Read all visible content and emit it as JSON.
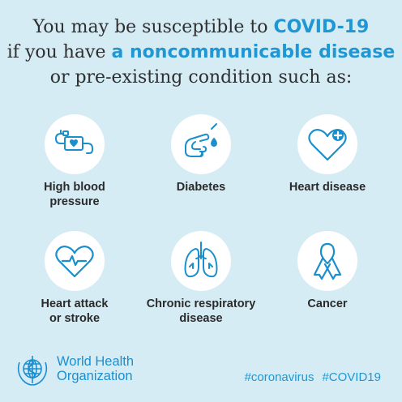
{
  "headline": {
    "line1_prefix": "You may be susceptible to ",
    "line1_highlight": "COVID-19",
    "line2_prefix": "if you have ",
    "line2_highlight": "a noncommunicable disease",
    "line3": "or pre-existing condition such as:"
  },
  "conditions": [
    {
      "line1": "High blood",
      "line2": "pressure",
      "icon": "blood-pressure-monitor-icon"
    },
    {
      "line1": "Diabetes",
      "line2": "",
      "icon": "finger-prick-icon"
    },
    {
      "line1": "Heart disease",
      "line2": "",
      "icon": "heart-plus-icon"
    },
    {
      "line1": "Heart attack",
      "line2": "or stroke",
      "icon": "heart-pulse-icon"
    },
    {
      "line1": "Chronic respiratory",
      "line2": "disease",
      "icon": "lungs-icon"
    },
    {
      "line1": "Cancer",
      "line2": "",
      "icon": "awareness-ribbon-icon"
    }
  ],
  "footer": {
    "org_line1": "World Health",
    "org_line2": "Organization",
    "hashtag1": "#coronavirus",
    "hashtag2": "#COVID19"
  },
  "colors": {
    "background": "#d6ecf5",
    "accent": "#1f97d4",
    "icon_stroke": "#1b8fcc"
  }
}
